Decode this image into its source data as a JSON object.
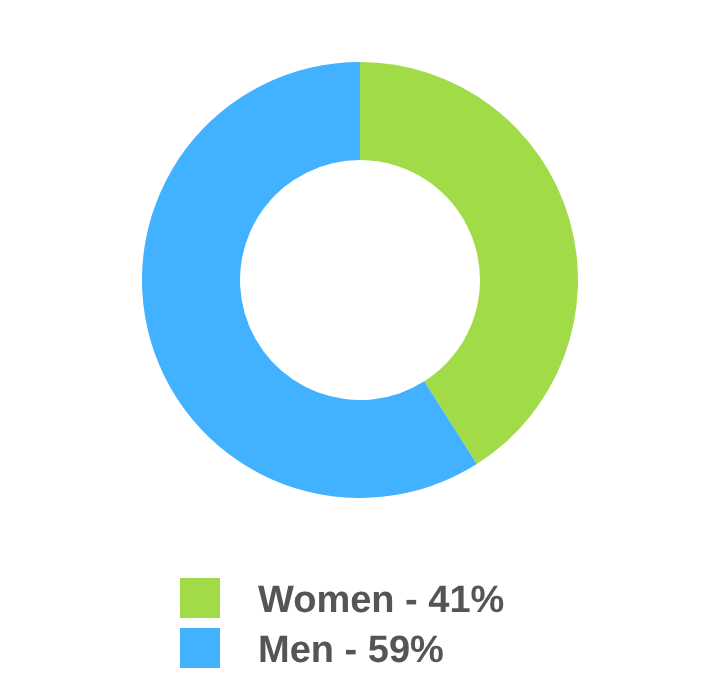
{
  "chart_data": {
    "type": "donut",
    "categories": [
      "Women - 41%",
      "Men - 59%"
    ],
    "values": [
      41,
      59
    ],
    "colors": [
      "#a1dc48",
      "#42b1ff"
    ],
    "legend": "bottom"
  }
}
